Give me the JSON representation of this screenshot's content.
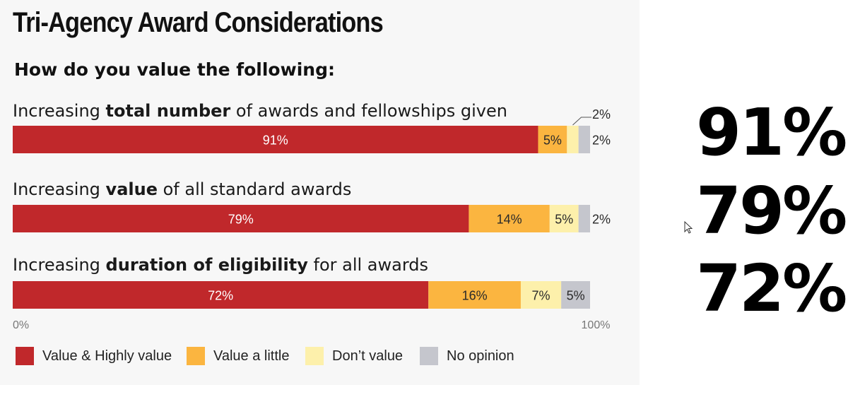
{
  "title": "Tri-Agency Award Considerations",
  "subtitle": "How do you value the following:",
  "questions": [
    {
      "pre": "Increasing ",
      "bold": "total number",
      "post": " of awards and fellowships given"
    },
    {
      "pre": "Increasing ",
      "bold": "value",
      "post": " of all standard awards"
    },
    {
      "pre": "Increasing ",
      "bold": "duration of eligibility",
      "post": " for all awards"
    }
  ],
  "big_numbers": [
    "91%",
    "79%",
    "72%"
  ],
  "chart_data": {
    "type": "bar",
    "orientation": "horizontal",
    "stacked": true,
    "categories": [
      "Increasing total number of awards and fellowships given",
      "Increasing value of all standard awards",
      "Increasing duration of eligibility for all awards"
    ],
    "series": [
      {
        "name": "Value & Highly value",
        "color": "#c0282b",
        "values": [
          91,
          79,
          72
        ],
        "labels": [
          "91%",
          "79%",
          "72%"
        ]
      },
      {
        "name": "Value a little",
        "color": "#fbb540",
        "values": [
          5,
          14,
          16
        ],
        "labels": [
          "5%",
          "14%",
          "16%"
        ]
      },
      {
        "name": "Don’t value",
        "color": "#fdf0ab",
        "values": [
          2,
          5,
          7
        ],
        "labels": [
          "2%",
          "5%",
          "7%"
        ]
      },
      {
        "name": "No opinion",
        "color": "#c5c6cd",
        "values": [
          2,
          2,
          5
        ],
        "labels": [
          "2%",
          "2%",
          "5%"
        ]
      }
    ],
    "xlim": [
      0,
      100
    ],
    "tick_labels": [
      "0%",
      "100%"
    ],
    "legend_position": "bottom"
  }
}
